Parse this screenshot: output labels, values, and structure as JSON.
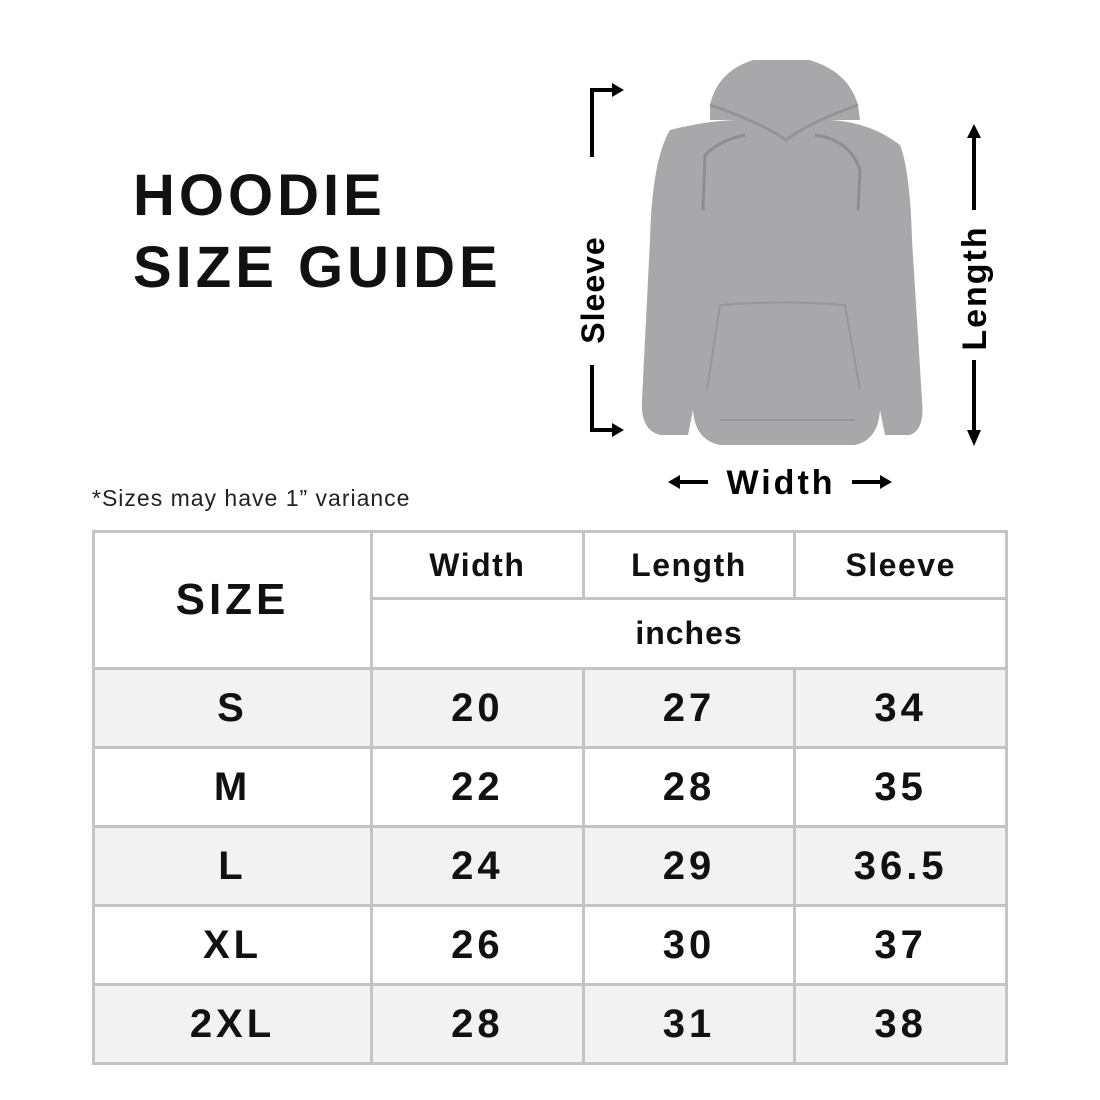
{
  "title": {
    "line1": "HOODIE",
    "line2": "SIZE GUIDE"
  },
  "note": "*Sizes may have 1” variance",
  "figure": {
    "labels": {
      "sleeve": "Sleeve",
      "length": "Length",
      "width": "Width"
    },
    "hoodie_color": "#a8a8aa"
  },
  "table": {
    "size_header": "SIZE",
    "columns": [
      "Width",
      "Length",
      "Sleeve"
    ],
    "unit": "inches",
    "rows": [
      {
        "size": "S",
        "width": "20",
        "length": "27",
        "sleeve": "34"
      },
      {
        "size": "M",
        "width": "22",
        "length": "28",
        "sleeve": "35"
      },
      {
        "size": "L",
        "width": "24",
        "length": "29",
        "sleeve": "36.5"
      },
      {
        "size": "XL",
        "width": "26",
        "length": "30",
        "sleeve": "37"
      },
      {
        "size": "2XL",
        "width": "28",
        "length": "31",
        "sleeve": "38"
      }
    ],
    "border_color": "#c4c4c4",
    "stripe_color": "#f2f2f2"
  }
}
